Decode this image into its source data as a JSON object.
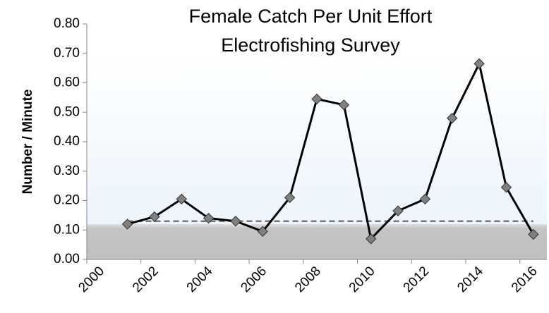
{
  "chart_data": {
    "type": "line",
    "title": [
      "Female Catch Per Unit Effort",
      "Electrofishing Survey"
    ],
    "y_label": "Number / Minute",
    "x": [
      2001.5,
      2002.5,
      2003.5,
      2004.5,
      2005.5,
      2006.5,
      2007.5,
      2008.5,
      2009.5,
      2010.5,
      2011.5,
      2012.5,
      2013.5,
      2014.5,
      2015.5,
      2016.5
    ],
    "series": [
      {
        "color": "#000000",
        "marker_color": "#808080",
        "values": [
          0.12,
          0.145,
          0.205,
          0.14,
          0.13,
          0.095,
          0.21,
          0.545,
          0.525,
          0.07,
          0.165,
          0.205,
          0.48,
          0.665,
          0.245,
          0.085
        ]
      }
    ],
    "reference_line": 0.13,
    "band": [
      0,
      0.12
    ],
    "xlim": [
      2000,
      2017
    ],
    "xticks": [
      2000,
      2002,
      2004,
      2006,
      2008,
      2010,
      2012,
      2014,
      2016
    ],
    "ylim": [
      0,
      0.8
    ],
    "yticks": [
      {
        "value": 0,
        "label": "0.00"
      },
      {
        "value": 0.1,
        "label": "0.10"
      },
      {
        "value": 0.2,
        "label": "0.20"
      },
      {
        "value": 0.3,
        "label": "0.30"
      },
      {
        "value": 0.4,
        "label": "0.40"
      },
      {
        "value": 0.5,
        "label": "0.50"
      },
      {
        "value": 0.6,
        "label": "0.60"
      },
      {
        "value": 0.7,
        "label": "0.70"
      },
      {
        "value": 0.8,
        "label": "0.80"
      }
    ]
  }
}
